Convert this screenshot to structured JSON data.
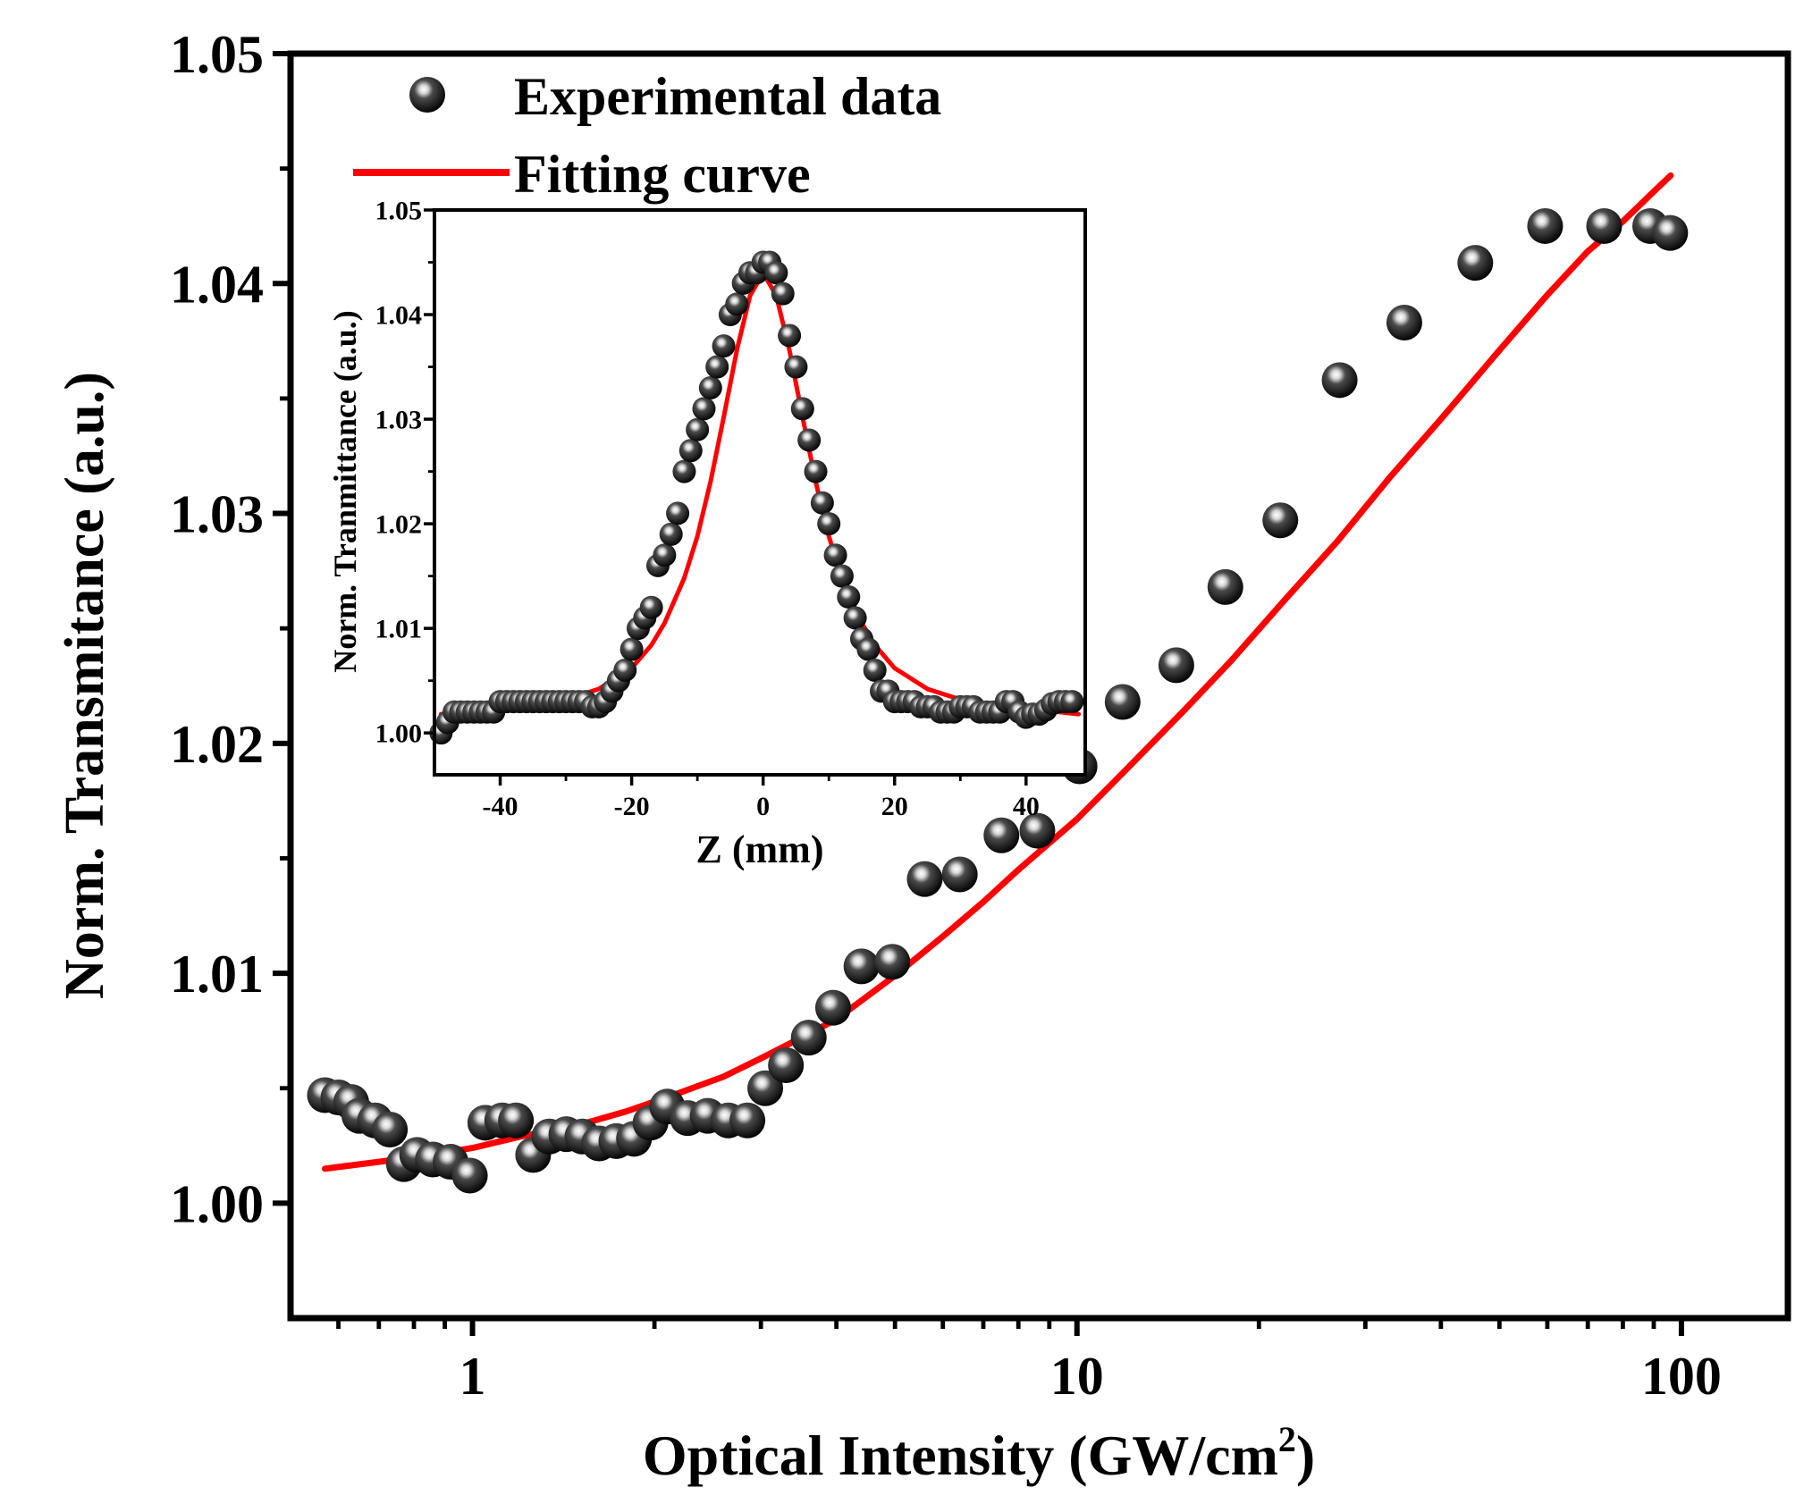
{
  "chart_data": [
    {
      "type": "scatter",
      "x_scale": "log",
      "title": "",
      "xlabel": "Optical Intensity (GW/cm",
      "xlabel_superscript": "2",
      "xlabel_suffix": ")",
      "ylabel": "Norm. Transmitance (a.u.)",
      "xlim": [
        0.5,
        150
      ],
      "ylim": [
        0.995,
        1.05
      ],
      "xticks": [
        1,
        10,
        100
      ],
      "xtick_labels": [
        "1",
        "10",
        "100"
      ],
      "yticks": [
        1.0,
        1.01,
        1.02,
        1.03,
        1.04,
        1.05
      ],
      "ytick_labels": [
        "1.00",
        "1.01",
        "1.02",
        "1.03",
        "1.04",
        "1.05"
      ],
      "legend_position": "top-left",
      "legend": [
        "Experimental data",
        "Fitting curve"
      ],
      "colors": {
        "fit": "#ff0000",
        "marker": "#111111",
        "axes": "#000000"
      },
      "series": [
        {
          "name": "Experimental data",
          "x": [
            0.57,
            0.6,
            0.63,
            0.65,
            0.69,
            0.73,
            0.77,
            0.81,
            0.86,
            0.92,
            0.99,
            1.05,
            1.12,
            1.18,
            1.26,
            1.34,
            1.43,
            1.52,
            1.62,
            1.73,
            1.85,
            1.97,
            2.1,
            2.27,
            2.45,
            2.65,
            2.85,
            3.05,
            3.3,
            3.6,
            3.95,
            4.4,
            4.95,
            5.6,
            6.4,
            7.5,
            8.6,
            10.1,
            11.9,
            14.6,
            17.6,
            21.7,
            27.2,
            34.8,
            45.6,
            59.5,
            74.5,
            88.8,
            95.8
          ],
          "y": [
            1.0047,
            1.0046,
            1.0044,
            1.0038,
            1.0036,
            1.0032,
            1.0017,
            1.0021,
            1.0019,
            1.0018,
            1.0012,
            1.0035,
            1.0036,
            1.0036,
            1.0021,
            1.0029,
            1.003,
            1.0029,
            1.0026,
            1.0027,
            1.0028,
            1.0035,
            1.0042,
            1.0037,
            1.0038,
            1.0036,
            1.0036,
            1.005,
            1.006,
            1.0072,
            1.0085,
            1.0103,
            1.0105,
            1.0141,
            1.0143,
            1.016,
            1.0162,
            1.019,
            1.0218,
            1.0234,
            1.0268,
            1.0297,
            1.0358,
            1.0383,
            1.0409,
            1.0425,
            1.0425,
            1.0425,
            1.0422
          ]
        },
        {
          "name": "Fitting curve",
          "x": [
            0.57,
            0.7,
            0.85,
            1.0,
            1.2,
            1.5,
            1.8,
            2.2,
            2.6,
            3.0,
            3.5,
            4.0,
            5.0,
            6.0,
            7.0,
            8.0,
            10.0,
            12.0,
            15.0,
            18.0,
            22.0,
            27.0,
            33.0,
            40.0,
            50.0,
            60.0,
            70.0,
            80.0,
            90.0,
            96.0
          ],
          "y": [
            1.0015,
            1.0018,
            1.0021,
            1.0024,
            1.0029,
            1.0034,
            1.004,
            1.0048,
            1.0055,
            1.0063,
            1.0072,
            1.008,
            1.0099,
            1.0116,
            1.0131,
            1.0145,
            1.0167,
            1.0188,
            1.0214,
            1.0236,
            1.0262,
            1.0288,
            1.0316,
            1.0341,
            1.0371,
            1.0395,
            1.0414,
            1.0427,
            1.044,
            1.0447
          ]
        }
      ]
    },
    {
      "type": "scatter",
      "title": "",
      "xlabel": "Z (mm)",
      "ylabel": "Norm. Tranmittance (a.u.)",
      "xlim": [
        -50,
        49
      ],
      "ylim": [
        0.996,
        1.05
      ],
      "xticks": [
        -40,
        -20,
        0,
        20,
        40
      ],
      "xtick_labels": [
        "-40",
        "-20",
        "0",
        "20",
        "40"
      ],
      "yticks": [
        1.0,
        1.01,
        1.02,
        1.03,
        1.04,
        1.05
      ],
      "ytick_labels": [
        "1.00",
        "1.01",
        "1.02",
        "1.03",
        "1.04",
        "1.05"
      ],
      "colors": {
        "fit": "#ff0000",
        "marker": "#111111",
        "axes": "#000000"
      },
      "series": [
        {
          "name": "Experimental data",
          "x": [
            -49,
            -48,
            -47,
            -46,
            -45,
            -44,
            -43,
            -42,
            -41,
            -40,
            -39,
            -38,
            -37,
            -36,
            -35,
            -34,
            -33,
            -32,
            -31,
            -30,
            -29,
            -28,
            -27,
            -26,
            -25,
            -24,
            -23,
            -22,
            -21,
            -20,
            -19,
            -18,
            -17,
            -16,
            -15,
            -14,
            -13,
            -12,
            -11,
            -10,
            -9,
            -8,
            -7,
            -6,
            -5,
            -4,
            -3,
            -2,
            -1,
            0,
            1,
            2,
            3,
            4,
            5,
            6,
            7,
            8,
            9,
            10,
            11,
            12,
            13,
            14,
            15,
            16,
            17,
            18,
            19,
            20,
            21,
            22,
            23,
            24,
            25,
            26,
            27,
            28,
            29,
            30,
            31,
            32,
            33,
            34,
            35,
            36,
            37,
            38,
            39,
            40,
            41,
            42,
            43,
            44,
            45,
            46,
            47
          ],
          "y": [
            1.0,
            1.001,
            1.002,
            1.002,
            1.002,
            1.002,
            1.002,
            1.002,
            1.002,
            1.003,
            1.003,
            1.003,
            1.003,
            1.003,
            1.003,
            1.003,
            1.003,
            1.003,
            1.003,
            1.003,
            1.003,
            1.003,
            1.003,
            1.0025,
            1.0025,
            1.003,
            1.004,
            1.005,
            1.006,
            1.008,
            1.01,
            1.011,
            1.012,
            1.016,
            1.017,
            1.019,
            1.021,
            1.025,
            1.027,
            1.029,
            1.031,
            1.033,
            1.035,
            1.037,
            1.04,
            1.041,
            1.043,
            1.044,
            1.044,
            1.045,
            1.045,
            1.044,
            1.042,
            1.038,
            1.035,
            1.031,
            1.028,
            1.025,
            1.022,
            1.02,
            1.017,
            1.015,
            1.013,
            1.011,
            1.009,
            1.008,
            1.006,
            1.004,
            1.004,
            1.003,
            1.003,
            1.003,
            1.003,
            1.0025,
            1.0025,
            1.0025,
            1.002,
            1.002,
            1.002,
            1.0025,
            1.0025,
            1.0025,
            1.002,
            1.002,
            1.002,
            1.002,
            1.003,
            1.003,
            1.002,
            1.0015,
            1.0018,
            1.0018,
            1.0022,
            1.0028,
            1.003,
            1.003,
            1.003
          ]
        },
        {
          "name": "Fitting curve",
          "x": [
            -49,
            -45,
            -40,
            -35,
            -30,
            -25,
            -20,
            -17,
            -15,
            -12,
            -10,
            -8,
            -6,
            -4,
            -2,
            0,
            2,
            4,
            6,
            8,
            10,
            12,
            15,
            17,
            20,
            25,
            30,
            35,
            40,
            45,
            48
          ],
          "y": [
            1.0018,
            1.002,
            1.0023,
            1.0027,
            1.0032,
            1.0042,
            1.0062,
            1.0084,
            1.0105,
            1.0148,
            1.0188,
            1.024,
            1.0302,
            1.0366,
            1.0418,
            1.044,
            1.0418,
            1.0366,
            1.0302,
            1.024,
            1.0188,
            1.0148,
            1.0105,
            1.0084,
            1.0062,
            1.0042,
            1.0032,
            1.0027,
            1.0023,
            1.002,
            1.0018
          ]
        }
      ]
    }
  ]
}
